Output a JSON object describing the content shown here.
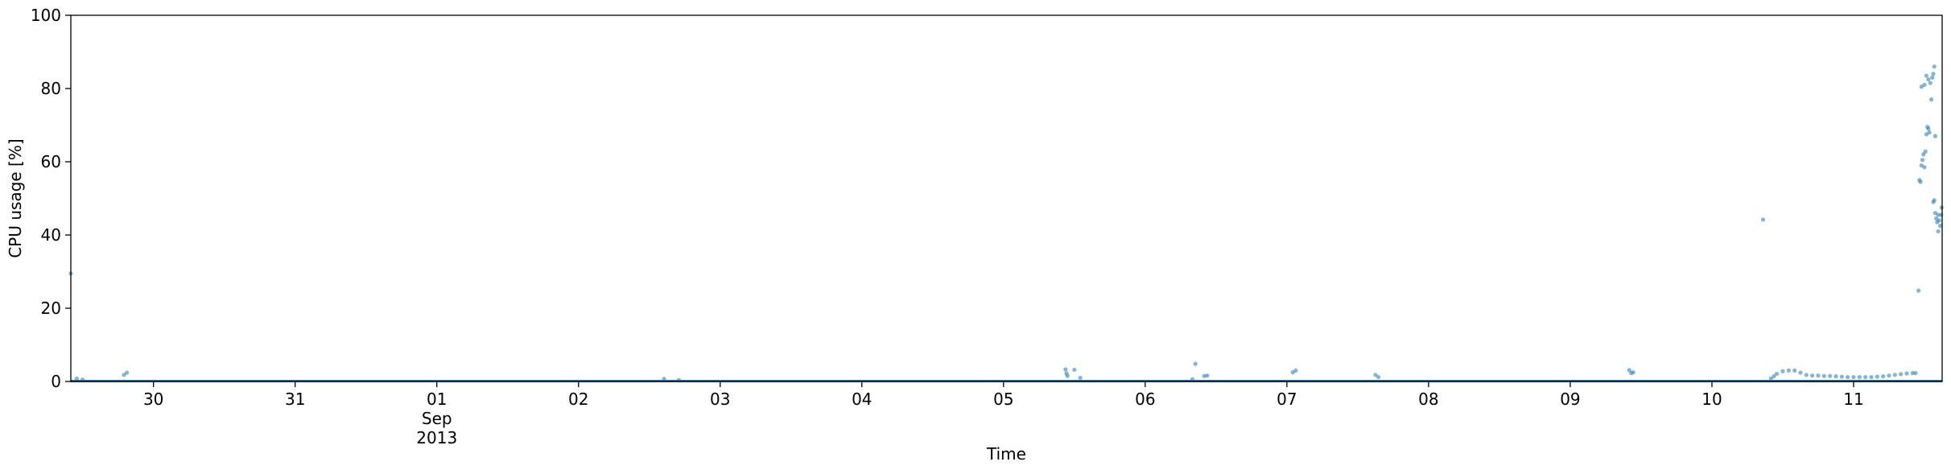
{
  "chart_data": {
    "type": "scatter",
    "title": "",
    "xlabel": "Time",
    "ylabel": "CPU usage [%]",
    "ylim": [
      0,
      100
    ],
    "xlim": [
      "2013-08-29T10:00",
      "2013-09-11T15:00"
    ],
    "grid": false,
    "legend": "none",
    "colors": {
      "points": "#1f77b4",
      "axes": "#000000"
    },
    "x_ticks": [
      {
        "date": "2013-08-30",
        "label": "30",
        "sub": ""
      },
      {
        "date": "2013-08-31",
        "label": "31",
        "sub": ""
      },
      {
        "date": "2013-09-01",
        "label": "01",
        "sub": "Sep\n2013"
      },
      {
        "date": "2013-09-02",
        "label": "02",
        "sub": ""
      },
      {
        "date": "2013-09-03",
        "label": "03",
        "sub": ""
      },
      {
        "date": "2013-09-04",
        "label": "04",
        "sub": ""
      },
      {
        "date": "2013-09-05",
        "label": "05",
        "sub": ""
      },
      {
        "date": "2013-09-06",
        "label": "06",
        "sub": ""
      },
      {
        "date": "2013-09-07",
        "label": "07",
        "sub": ""
      },
      {
        "date": "2013-09-08",
        "label": "08",
        "sub": ""
      },
      {
        "date": "2013-09-09",
        "label": "09",
        "sub": ""
      },
      {
        "date": "2013-09-10",
        "label": "10",
        "sub": ""
      },
      {
        "date": "2013-09-11",
        "label": "11",
        "sub": ""
      }
    ],
    "y_ticks": [
      0,
      20,
      40,
      60,
      80,
      100
    ],
    "series": [
      {
        "baseline": {
          "from": "2013-08-29T10:00",
          "to": "2013-09-11T15:00",
          "value": 0.1
        },
        "points": [
          [
            "2013-08-29T10:00",
            29.5
          ],
          [
            "2013-08-29T11:00",
            0.8
          ],
          [
            "2013-08-29T12:00",
            0.5
          ],
          [
            "2013-08-29T19:00",
            1.8
          ],
          [
            "2013-08-29T19:30",
            2.4
          ],
          [
            "2013-09-02T14:30",
            0.7
          ],
          [
            "2013-09-02T17:00",
            0.4
          ],
          [
            "2013-09-05T10:30",
            3.3
          ],
          [
            "2013-09-05T10:40",
            2.2
          ],
          [
            "2013-09-05T10:50",
            1.5
          ],
          [
            "2013-09-05T12:00",
            3.2
          ],
          [
            "2013-09-05T13:00",
            1.0
          ],
          [
            "2013-09-06T08:30",
            4.8
          ],
          [
            "2013-09-06T08:00",
            0.6
          ],
          [
            "2013-09-06T10:00",
            1.5
          ],
          [
            "2013-09-06T10:30",
            1.6
          ],
          [
            "2013-09-07T01:00",
            2.5
          ],
          [
            "2013-09-07T01:30",
            3.0
          ],
          [
            "2013-09-07T15:00",
            1.8
          ],
          [
            "2013-09-07T15:30",
            1.2
          ],
          [
            "2013-09-09T10:00",
            3.1
          ],
          [
            "2013-09-09T10:20",
            2.3
          ],
          [
            "2013-09-09T10:40",
            2.5
          ],
          [
            "2013-09-10T08:40",
            44.2
          ],
          [
            "2013-09-10T10:00",
            0.8
          ],
          [
            "2013-09-10T10:30",
            1.4
          ],
          [
            "2013-09-10T11:00",
            2.1
          ],
          [
            "2013-09-10T12:00",
            2.8
          ],
          [
            "2013-09-10T13:00",
            3.0
          ],
          [
            "2013-09-10T14:00",
            3.0
          ],
          [
            "2013-09-10T15:00",
            2.4
          ],
          [
            "2013-09-10T16:00",
            1.8
          ],
          [
            "2013-09-10T17:00",
            1.6
          ],
          [
            "2013-09-10T18:00",
            1.6
          ],
          [
            "2013-09-10T19:00",
            1.5
          ],
          [
            "2013-09-10T20:00",
            1.5
          ],
          [
            "2013-09-10T21:00",
            1.4
          ],
          [
            "2013-09-10T22:00",
            1.3
          ],
          [
            "2013-09-10T23:00",
            1.2
          ],
          [
            "2013-09-11T00:00",
            1.2
          ],
          [
            "2013-09-11T01:00",
            1.2
          ],
          [
            "2013-09-11T02:00",
            1.2
          ],
          [
            "2013-09-11T03:00",
            1.2
          ],
          [
            "2013-09-11T04:00",
            1.3
          ],
          [
            "2013-09-11T05:00",
            1.4
          ],
          [
            "2013-09-11T06:00",
            1.6
          ],
          [
            "2013-09-11T07:00",
            1.8
          ],
          [
            "2013-09-11T08:00",
            2.0
          ],
          [
            "2013-09-11T09:00",
            2.2
          ],
          [
            "2013-09-11T10:00",
            2.3
          ],
          [
            "2013-09-11T10:30",
            2.3
          ],
          [
            "2013-09-11T11:00",
            24.8
          ],
          [
            "2013-09-11T11:10",
            55.0
          ],
          [
            "2013-09-11T11:20",
            54.5
          ],
          [
            "2013-09-11T11:30",
            59.0
          ],
          [
            "2013-09-11T11:40",
            60.5
          ],
          [
            "2013-09-11T11:50",
            62.0
          ],
          [
            "2013-09-11T12:00",
            58.5
          ],
          [
            "2013-09-11T12:10",
            62.8
          ],
          [
            "2013-09-11T12:20",
            67.5
          ],
          [
            "2013-09-11T12:30",
            69.5
          ],
          [
            "2013-09-11T12:40",
            69.0
          ],
          [
            "2013-09-11T12:50",
            68.0
          ],
          [
            "2013-09-11T11:30",
            80.5
          ],
          [
            "2013-09-11T12:00",
            81.0
          ],
          [
            "2013-09-11T12:20",
            83.5
          ],
          [
            "2013-09-11T12:40",
            82.5
          ],
          [
            "2013-09-11T13:00",
            81.5
          ],
          [
            "2013-09-11T13:10",
            77.0
          ],
          [
            "2013-09-11T13:20",
            83.0
          ],
          [
            "2013-09-11T13:30",
            84.0
          ],
          [
            "2013-09-11T13:40",
            86.0
          ],
          [
            "2013-09-11T13:50",
            67.0
          ],
          [
            "2013-09-11T13:30",
            49.0
          ],
          [
            "2013-09-11T13:40",
            49.5
          ],
          [
            "2013-09-11T13:50",
            46.0
          ],
          [
            "2013-09-11T14:00",
            44.5
          ],
          [
            "2013-09-11T14:10",
            43.5
          ],
          [
            "2013-09-11T14:20",
            45.5
          ],
          [
            "2013-09-11T14:30",
            44.0
          ],
          [
            "2013-09-11T14:40",
            42.5
          ],
          [
            "2013-09-11T14:50",
            45.5
          ],
          [
            "2013-09-11T14:55",
            47.5
          ],
          [
            "2013-09-11T14:20",
            41.0
          ]
        ]
      }
    ]
  }
}
